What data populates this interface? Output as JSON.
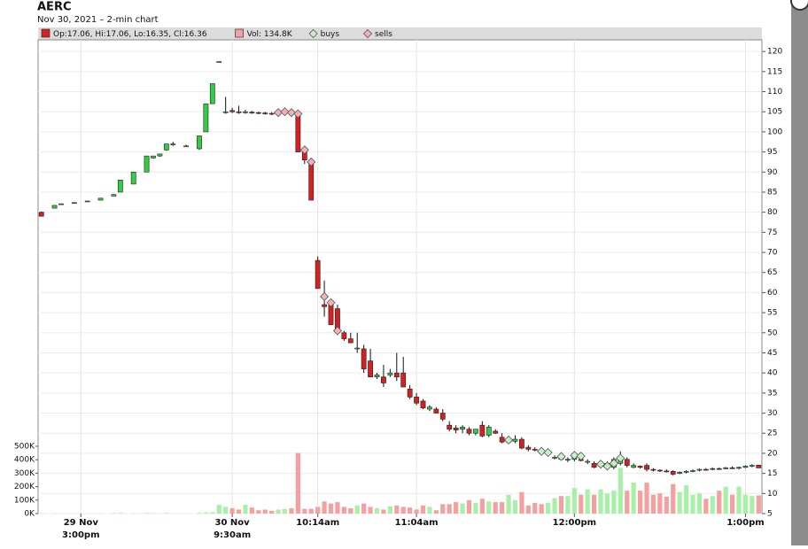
{
  "chart_data": {
    "type": "candlestick",
    "title": "AERC",
    "subtitle": "Nov 30, 2021 – 2-min chart",
    "legend": [
      {
        "label": "Op:17.06, Hi:17.06, Lo:16.35, Cl:16.36",
        "color": "#d42020"
      },
      {
        "label": "Vol: 134.8K",
        "color": "#f4a0a0"
      }
    ],
    "categories": [
      null,
      null,
      null,
      null,
      null,
      null,
      [
        "29 Nov",
        "3:00pm"
      ],
      null,
      null,
      null,
      null,
      null,
      null,
      null,
      null,
      null,
      null,
      null,
      null,
      null,
      null,
      null,
      null,
      null,
      null,
      null,
      null,
      null,
      null,
      [
        "30 Nov",
        "9:30am"
      ],
      null,
      null,
      null,
      null,
      null,
      null,
      null,
      null,
      null,
      null,
      null,
      null,
      "10:14am",
      null,
      null,
      null,
      null,
      null,
      null,
      null,
      null,
      null,
      null,
      null,
      null,
      null,
      null,
      "11:04am",
      null,
      null,
      null,
      null,
      null,
      null,
      null,
      null,
      null,
      null,
      null,
      null,
      null,
      null,
      null,
      null,
      null,
      null,
      null,
      null,
      null,
      null,
      null,
      "12:00pm",
      null,
      null,
      null,
      null,
      null,
      null,
      null,
      null,
      null,
      null,
      null,
      null,
      null,
      null,
      null,
      null,
      null,
      null,
      null,
      null,
      null,
      null,
      null,
      null,
      null,
      "1:00pm",
      null,
      null
    ],
    "open": [
      80,
      null,
      81,
      82,
      null,
      82.3,
      null,
      82.6,
      null,
      83,
      null,
      84,
      85,
      null,
      87,
      null,
      90,
      93.5,
      94,
      95.5,
      97,
      null,
      96.5,
      null,
      95.8,
      100,
      107,
      117.5,
      105,
      105.3,
      105,
      104.8,
      104.9,
      104.8,
      104.7,
      104.6,
      104.5,
      104.8,
      105,
      104,
      95,
      92,
      68,
      57,
      57,
      56,
      50,
      48.5,
      46,
      46,
      43,
      39,
      39,
      39.5,
      40,
      40,
      36,
      34,
      33,
      31,
      31,
      30,
      27,
      26.3,
      26,
      26,
      25,
      27,
      24.5,
      25.5,
      24,
      23,
      23,
      23.5,
      21.5,
      21,
      20.5,
      20,
      19,
      18.8,
      18.3,
      18.5,
      18.5,
      18,
      17.5,
      16.8,
      17,
      16.5,
      17.5,
      18.5,
      16.5,
      16.8,
      17,
      16,
      15.8,
      15.6,
      15.5,
      15,
      15.3,
      15.5,
      15.8,
      16,
      16,
      16.2,
      16.2,
      16.4,
      16.3,
      16.5,
      16.8,
      17.06
    ],
    "high": [
      80.2,
      null,
      81.8,
      82.2,
      null,
      82.5,
      null,
      82.8,
      null,
      83.5,
      null,
      84.5,
      88,
      null,
      90,
      null,
      94,
      94,
      94.5,
      97,
      97.5,
      null,
      96.8,
      null,
      99,
      107,
      112,
      117.5,
      108.7,
      106,
      106.5,
      105.5,
      105.2,
      105,
      105,
      104.9,
      105,
      105.5,
      105.5,
      105,
      96,
      93,
      69,
      63,
      58,
      57,
      50.5,
      50,
      50,
      47,
      46,
      40,
      42,
      41,
      45,
      44,
      37,
      35,
      33.5,
      32,
      31.5,
      31,
      28,
      27,
      27,
      26.5,
      26,
      28,
      27,
      26,
      25,
      23.5,
      24.5,
      24,
      22,
      21.5,
      21,
      20.5,
      19.5,
      19.2,
      19,
      19.5,
      19,
      18.5,
      18,
      17.3,
      18,
      19,
      20.5,
      19,
      17.5,
      17,
      17.5,
      16.3,
      16,
      16,
      15.8,
      15.5,
      15.8,
      16,
      16.2,
      16.3,
      16.5,
      16.5,
      16.6,
      16.8,
      16.7,
      17,
      17.3,
      17.06
    ],
    "low": [
      79,
      null,
      81,
      82,
      null,
      82.2,
      null,
      82.5,
      null,
      83,
      null,
      84,
      85,
      null,
      87,
      null,
      90,
      93.3,
      93.8,
      95.3,
      96.5,
      null,
      96.3,
      null,
      95.5,
      100,
      107,
      117.5,
      104.5,
      104.7,
      104.5,
      104.5,
      104.5,
      104.4,
      104.3,
      104.2,
      104.3,
      104.3,
      104,
      95,
      92,
      83,
      61,
      54,
      52,
      50,
      48,
      47.5,
      45,
      40,
      39,
      38.5,
      36.5,
      39,
      38,
      36.5,
      33.5,
      32,
      31,
      30.5,
      30,
      28,
      25.5,
      25,
      25,
      24.5,
      24.5,
      24,
      24,
      24.8,
      22.5,
      22.5,
      22.5,
      21,
      20.5,
      20.5,
      20,
      19.5,
      18.5,
      18.3,
      17.8,
      18,
      18,
      17.3,
      16.3,
      16.5,
      16.3,
      16,
      17,
      16.5,
      16.3,
      16.2,
      15.5,
      15.5,
      15.4,
      15.2,
      14.5,
      14.8,
      15,
      15.3,
      15.5,
      15.7,
      15.8,
      15.9,
      16,
      16.1,
      16,
      16.3,
      16.5,
      16.35
    ],
    "close": [
      79,
      null,
      81.7,
      82.1,
      null,
      82.4,
      null,
      82.8,
      null,
      83.5,
      null,
      84.4,
      88,
      null,
      90,
      null,
      94,
      94,
      94.5,
      97,
      97,
      null,
      96.5,
      null,
      99,
      107,
      112,
      117.5,
      105,
      105,
      104.8,
      105,
      104.8,
      104.7,
      104.6,
      104.5,
      104.8,
      105,
      104.5,
      95,
      93,
      83,
      61,
      56.5,
      52,
      51,
      48.5,
      47.5,
      46.2,
      41,
      39,
      39.5,
      37.5,
      40,
      39,
      36.5,
      34,
      32.5,
      31.3,
      31.5,
      30,
      28.5,
      26,
      25.8,
      26.5,
      25,
      26,
      24.3,
      26.5,
      25,
      22.8,
      23,
      23.5,
      21.3,
      21,
      20.8,
      20,
      20,
      19,
      18.5,
      18.5,
      19.2,
      18.2,
      18,
      16.5,
      17,
      17.5,
      18.5,
      19,
      17,
      17,
      16.5,
      16,
      15.8,
      15.6,
      15.5,
      14.8,
      15.3,
      15.5,
      15.7,
      16,
      15.9,
      16.2,
      16.1,
      16.4,
      16.3,
      16.5,
      16.8,
      17,
      16.36
    ],
    "volume": [
      2000,
      null,
      3000,
      1000,
      null,
      2000,
      null,
      1000,
      null,
      2000,
      null,
      4000,
      5000,
      null,
      3000,
      null,
      4000,
      3000,
      2000,
      4000,
      2000,
      null,
      2000,
      null,
      6000,
      8000,
      10000,
      65000,
      50000,
      40000,
      30000,
      65000,
      45000,
      25000,
      30000,
      20000,
      30000,
      35000,
      40000,
      450000,
      35000,
      35000,
      50000,
      90000,
      75000,
      85000,
      50000,
      40000,
      60000,
      75000,
      50000,
      40000,
      30000,
      55000,
      60000,
      50000,
      45000,
      30000,
      60000,
      50000,
      25000,
      70000,
      70000,
      85000,
      75000,
      100000,
      80000,
      110000,
      90000,
      85000,
      85000,
      140000,
      100000,
      160000,
      60000,
      80000,
      70000,
      80000,
      115000,
      130000,
      130000,
      190000,
      140000,
      180000,
      140000,
      180000,
      150000,
      170000,
      340000,
      170000,
      230000,
      170000,
      230000,
      140000,
      150000,
      125000,
      220000,
      160000,
      210000,
      140000,
      150000,
      110000,
      130000,
      170000,
      200000,
      140000,
      200000,
      140000,
      130000,
      134800
    ],
    "series": [
      {
        "name": "buys",
        "color": "#c8f0c8",
        "values": [
          null,
          null,
          null,
          null,
          null,
          null,
          null,
          null,
          null,
          null,
          null,
          null,
          null,
          null,
          null,
          null,
          null,
          null,
          null,
          null,
          null,
          null,
          null,
          null,
          null,
          null,
          null,
          null,
          null,
          null,
          null,
          null,
          null,
          null,
          null,
          null,
          null,
          null,
          null,
          null,
          null,
          null,
          null,
          null,
          null,
          null,
          null,
          null,
          null,
          null,
          null,
          null,
          null,
          null,
          null,
          null,
          null,
          null,
          null,
          null,
          null,
          null,
          null,
          null,
          null,
          null,
          null,
          null,
          null,
          null,
          null,
          23.3,
          null,
          null,
          null,
          null,
          20.5,
          20.2,
          null,
          19.2,
          null,
          19.5,
          19.3,
          null,
          null,
          17.3,
          16.8,
          17.5,
          18.8,
          null,
          null,
          null,
          null,
          null,
          null,
          null,
          null,
          null,
          null,
          null,
          null,
          null,
          null,
          null,
          null,
          null,
          null,
          null,
          null,
          null
        ]
      },
      {
        "name": "sells",
        "color": "#f4b0b8",
        "values": [
          null,
          null,
          null,
          null,
          null,
          null,
          null,
          null,
          null,
          null,
          null,
          null,
          null,
          null,
          null,
          null,
          null,
          null,
          null,
          null,
          null,
          null,
          null,
          null,
          null,
          null,
          null,
          null,
          null,
          null,
          null,
          null,
          null,
          null,
          null,
          null,
          104.8,
          105,
          104.8,
          104.5,
          95.5,
          92.5,
          null,
          59,
          57.5,
          50.5,
          null,
          null,
          null,
          null,
          null,
          null,
          null,
          null,
          null,
          null,
          null,
          null,
          null,
          null,
          null,
          null,
          null,
          null,
          null,
          null,
          null,
          null,
          null,
          null,
          null,
          null,
          null,
          null,
          null,
          null,
          null,
          null,
          null,
          null,
          null,
          null,
          null,
          null,
          null,
          null,
          null,
          null,
          null,
          null,
          null,
          null,
          null,
          null,
          null,
          null,
          null,
          null,
          null,
          null,
          null,
          null,
          null,
          null,
          null,
          null,
          null,
          null,
          null,
          null
        ]
      }
    ],
    "up_color": "#33cc44",
    "down_color": "#d42020",
    "up_volume_color": "#a8f0a8",
    "down_volume_color": "#f4a0a0",
    "ylim": [
      5,
      122.9
    ],
    "yticks": [
      5,
      10,
      15,
      20,
      25,
      30,
      35,
      40,
      45,
      50,
      55,
      60,
      65,
      70,
      75,
      80,
      85,
      90,
      95,
      100,
      105,
      110,
      115,
      120
    ],
    "y2lim": [
      0,
      3520000
    ],
    "y2ticks": [
      {
        "value": 0,
        "label": "0K"
      },
      {
        "value": 100000,
        "label": "100K"
      },
      {
        "value": 200000,
        "label": "200K"
      },
      {
        "value": 300000,
        "label": "300K"
      },
      {
        "value": 400000,
        "label": "400K"
      },
      {
        "value": 500000,
        "label": "500K"
      }
    ],
    "grid": true
  }
}
